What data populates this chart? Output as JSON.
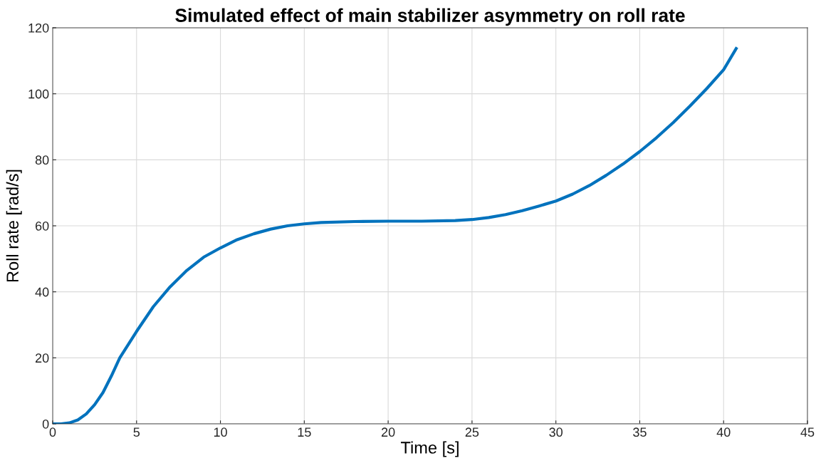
{
  "chart_data": {
    "type": "line",
    "title": "Simulated effect of main stabilizer asymmetry on roll rate",
    "xlabel": "Time [s]",
    "ylabel": "Roll rate [rad/s]",
    "x": [
      0,
      0.5,
      1,
      1.5,
      2,
      2.5,
      3,
      3.5,
      4,
      5,
      6,
      7,
      8,
      9,
      10,
      11,
      12,
      13,
      14,
      15,
      16,
      18,
      20,
      22,
      24,
      25,
      26,
      27,
      28,
      29,
      30,
      31,
      32,
      33,
      34,
      35,
      36,
      37,
      38,
      39,
      40,
      40.75
    ],
    "series": [
      {
        "color": "#0072bd",
        "values": [
          0,
          0,
          0.3,
          1.2,
          3,
          5.8,
          9.5,
          14.5,
          20,
          28,
          35.5,
          41.5,
          46.5,
          50.5,
          53.3,
          55.8,
          57.6,
          59,
          60,
          60.6,
          61,
          61.3,
          61.4,
          61.4,
          61.6,
          61.9,
          62.5,
          63.4,
          64.6,
          66,
          67.5,
          69.6,
          72.2,
          75.3,
          78.7,
          82.5,
          86.7,
          91.3,
          96.3,
          101.6,
          107.3,
          113.7
        ]
      }
    ],
    "xlim": [
      0,
      45
    ],
    "xticks": [
      0,
      5,
      10,
      15,
      20,
      25,
      30,
      35,
      40,
      45
    ],
    "ylim": [
      0,
      120
    ],
    "yticks": [
      0,
      20,
      40,
      60,
      80,
      100,
      120
    ],
    "grid": true,
    "marker": "none",
    "line_style": "solid"
  }
}
